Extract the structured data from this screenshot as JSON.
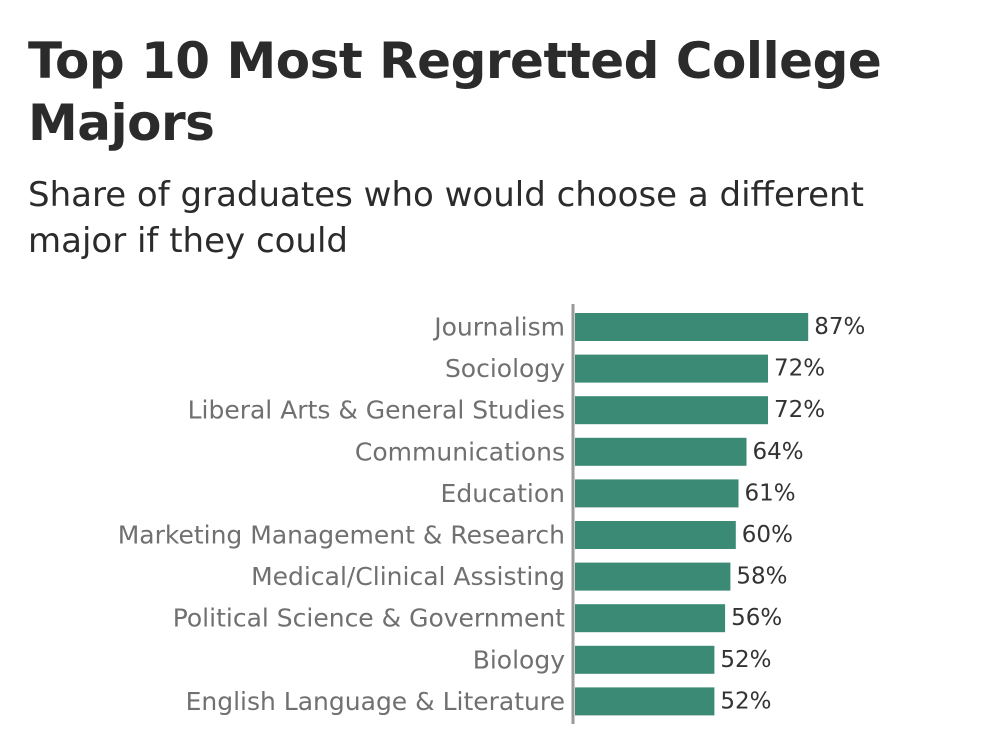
{
  "chart_data": {
    "type": "bar",
    "orientation": "horizontal",
    "title": "Top 10 Most Regretted College Majors",
    "subtitle": "Share of graduates who would choose a different major if they could",
    "categories": [
      "Journalism",
      "Sociology",
      "Liberal Arts & General Studies",
      "Communications",
      "Education",
      "Marketing Management & Research",
      "Medical/Clinical Assisting",
      "Political Science & Government",
      "Biology",
      "English Language & Literature"
    ],
    "values": [
      87,
      72,
      72,
      64,
      61,
      60,
      58,
      56,
      52,
      52
    ],
    "value_labels": [
      "87%",
      "72%",
      "72%",
      "64%",
      "61%",
      "60%",
      "58%",
      "56%",
      "52%",
      "52%"
    ],
    "xlim": [
      0,
      100
    ],
    "xlabel": "",
    "ylabel": "",
    "grid": false,
    "bar_color": "#3a8a75",
    "axis_color": "#9a9a9a"
  }
}
